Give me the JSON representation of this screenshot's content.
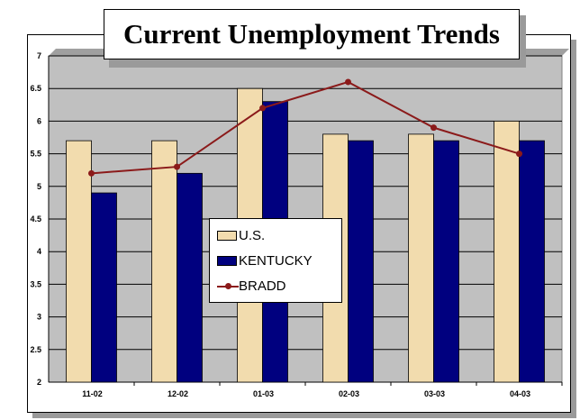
{
  "chart_data": {
    "type": "bar",
    "title": "Current Unemployment Trends",
    "xlabel": "",
    "ylabel": "",
    "categories": [
      "11-02",
      "12-02",
      "01-03",
      "02-03",
      "03-03",
      "04-03"
    ],
    "series": [
      {
        "name": "U.S.",
        "kind": "bar",
        "color": "#f2dcae",
        "values": [
          5.7,
          5.7,
          6.5,
          5.8,
          5.8,
          6.0
        ]
      },
      {
        "name": "KENTUCKY",
        "kind": "bar",
        "color": "#00007f",
        "values": [
          4.9,
          5.2,
          6.3,
          5.7,
          5.7,
          5.7
        ]
      },
      {
        "name": "BRADD",
        "kind": "line",
        "color": "#8b1a1a",
        "values": [
          5.2,
          5.3,
          6.2,
          6.6,
          5.9,
          5.5
        ]
      }
    ],
    "ylim": [
      2,
      7
    ],
    "yticks": [
      "2",
      "2.5",
      "3",
      "3.5",
      "4",
      "4.5",
      "5",
      "5.5",
      "6",
      "6.5",
      "7"
    ],
    "grid": true,
    "legend_position": "center-left"
  }
}
